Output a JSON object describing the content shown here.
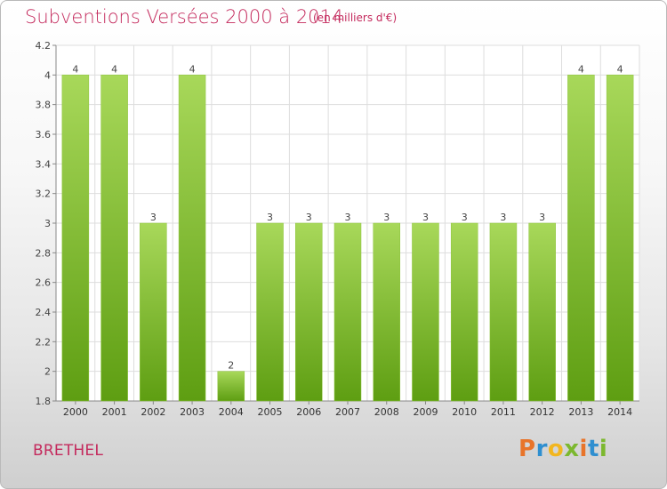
{
  "header": {
    "title": "Subventions Versées 2000 à 2014",
    "subtitle": "(en milliers d'€)"
  },
  "footer": {
    "commune": "BRETHEL",
    "logo_text": "Proxiti",
    "logo_colors": [
      "#e8742a",
      "#2f8fd0",
      "#f2b61f",
      "#7cb82f",
      "#e8742a",
      "#2f8fd0",
      "#7cb82f"
    ]
  },
  "colors": {
    "bar_light": "#a8d85a",
    "bar_dark": "#5e9e12",
    "title": "#c42a5d",
    "grid": "#dddddd"
  },
  "chart_data": {
    "type": "bar",
    "title": "Subventions Versées 2000 à 2014",
    "subtitle": "(en milliers d'€)",
    "xlabel": "",
    "ylabel": "",
    "categories": [
      "2000",
      "2001",
      "2002",
      "2003",
      "2004",
      "2005",
      "2006",
      "2007",
      "2008",
      "2009",
      "2010",
      "2011",
      "2012",
      "2013",
      "2014"
    ],
    "values": [
      4,
      4,
      3,
      4,
      2,
      3,
      3,
      3,
      3,
      3,
      3,
      3,
      3,
      4,
      4
    ],
    "data_labels": [
      "4",
      "4",
      "3",
      "4",
      "2",
      "3",
      "3",
      "3",
      "3",
      "3",
      "3",
      "3",
      "3",
      "4",
      "4"
    ],
    "ylim": [
      1.8,
      4.2
    ],
    "yticks": [
      "4.2",
      "4",
      "3.8",
      "3.6",
      "3.4",
      "3.2",
      "3",
      "2.8",
      "2.6",
      "2.4",
      "2.2",
      "2",
      "1.8"
    ],
    "ytick_values": [
      4.2,
      4,
      3.8,
      3.6,
      3.4,
      3.2,
      3,
      2.8,
      2.6,
      2.4,
      2.2,
      2,
      1.8
    ],
    "grid": true
  }
}
